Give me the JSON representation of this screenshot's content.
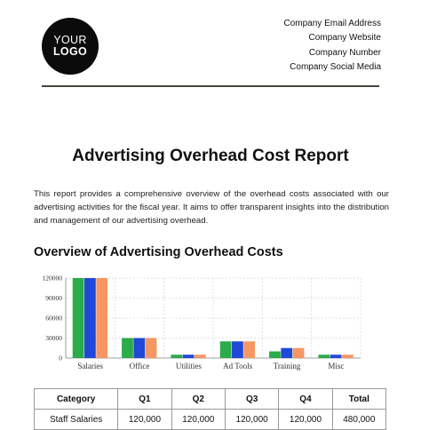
{
  "header": {
    "logo_line1": "YOUR",
    "logo_line2": "LOGO",
    "contact": [
      "Company Email Address",
      "Company Website",
      "Company Number",
      "Company Social Media"
    ]
  },
  "report": {
    "title": "Advertising Overhead Cost Report",
    "intro": "This report provides a comprehensive overview of the overhead costs associated with our advertising activities for the fiscal year. It aims to offer transparent insights into the distribution and management of our advertising overhead.",
    "section_title": "Overview of Advertising Overhead Costs"
  },
  "chart_data": {
    "type": "bar",
    "categories": [
      "Salaries",
      "Office",
      "Utilities",
      "Ad Tools",
      "Training",
      "Misc"
    ],
    "series": [
      {
        "color": "#2bab4a",
        "values": [
          120000,
          30000,
          5000,
          25000,
          10000,
          5000
        ]
      },
      {
        "color": "#1f49d6",
        "values": [
          120000,
          30000,
          5000,
          25000,
          15000,
          5000
        ]
      },
      {
        "color": "#f59763",
        "values": [
          120000,
          30000,
          5000,
          25000,
          15000,
          5000
        ]
      }
    ],
    "yticks": [
      0,
      30000,
      60000,
      90000,
      120000
    ],
    "ylim": [
      0,
      120000
    ],
    "grid": true,
    "title": "",
    "xlabel": "",
    "ylabel": ""
  },
  "table": {
    "headers": [
      "Category",
      "Q1",
      "Q2",
      "Q3",
      "Q4",
      "Total"
    ],
    "rows": [
      [
        "Staff Salaries",
        "120,000",
        "120,000",
        "120,000",
        "120,000",
        "480,000"
      ]
    ]
  }
}
